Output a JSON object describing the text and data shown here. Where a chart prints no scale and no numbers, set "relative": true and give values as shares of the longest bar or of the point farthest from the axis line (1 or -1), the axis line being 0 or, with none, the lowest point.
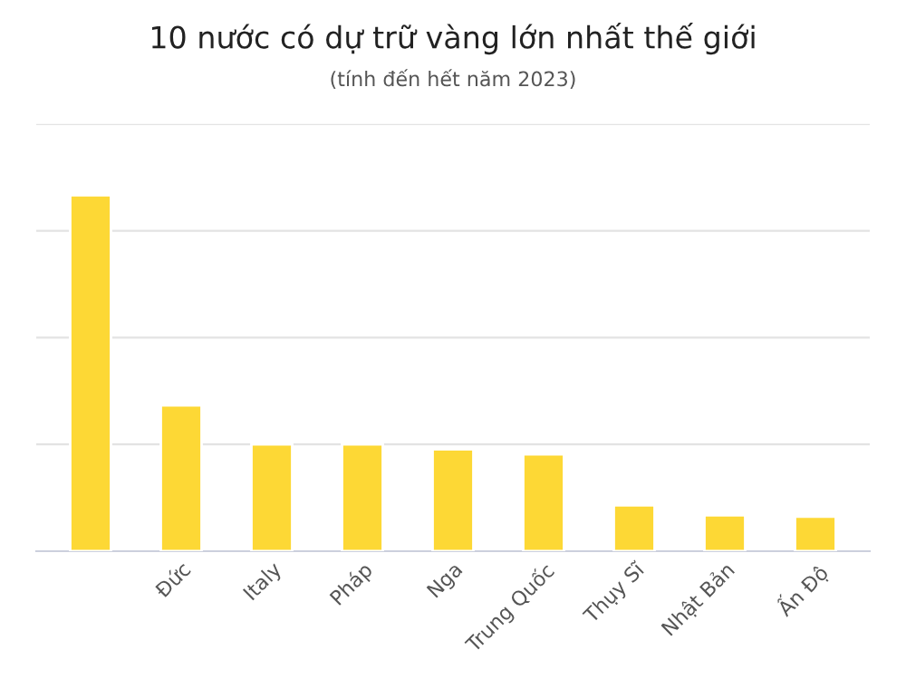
{
  "chart_data": {
    "type": "bar",
    "title": "10 nước có dự trữ vàng lớn nhất thế giới",
    "subtitle": "(tính đến hết năm 2023)",
    "categories": [
      null,
      "Đức",
      "Italy",
      "Pháp",
      "Nga",
      "Trung Quốc",
      "Thụy Sĩ",
      "Nhật Bản",
      "Ấn Độ"
    ],
    "values": [
      1,
      0.41,
      0.3,
      0.3,
      0.286,
      0.272,
      0.129,
      0.101,
      0.097
    ],
    "color": "#fdd835",
    "relative": true,
    "grid": "y",
    "legend": false
  }
}
